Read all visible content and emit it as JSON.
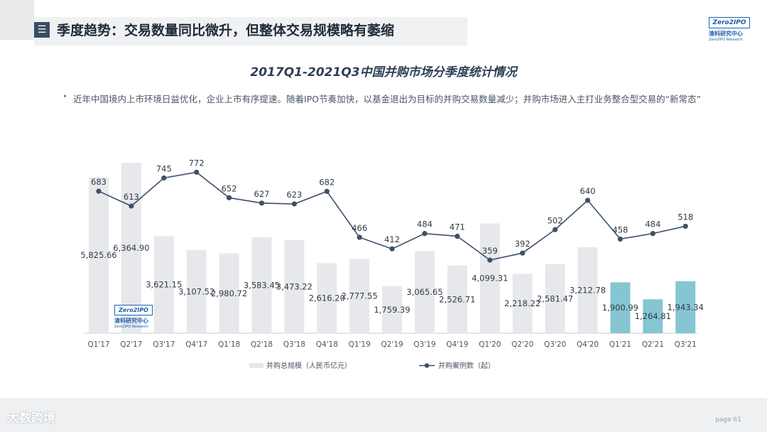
{
  "header": {
    "icon": "menu-icon",
    "icon_glyph": "☰",
    "title": "季度趋势：交易数量同比微升，但整体交易规模略有萎缩"
  },
  "logo": {
    "badge": "Zero2IPO",
    "cn": "清科研究中心",
    "en": "Zero2IPO Research"
  },
  "bullet": {
    "text": "近年中国境内上市环境日益优化，企业上市有序提速。随着IPO节奏加快，以基金退出为目标的并购交易数量减少；并购市场进入主打业务整合型交易的“新常态”"
  },
  "footer": {
    "watermark": "大数跨境",
    "page_label": "page 61"
  },
  "chart_data": {
    "type": "bar",
    "title": "2017Q1-2021Q3中国并购市场分季度统计情况",
    "categories": [
      "Q1'17",
      "Q2'17",
      "Q3'17",
      "Q4'17",
      "Q1'18",
      "Q2'18",
      "Q3'18",
      "Q4'18",
      "Q1'19",
      "Q2'19",
      "Q3'19",
      "Q4'19",
      "Q1'20",
      "Q2'20",
      "Q3'20",
      "Q4'20",
      "Q1'21",
      "Q2'21",
      "Q3'21"
    ],
    "series": [
      {
        "name": "并购总规模（人民币亿元）",
        "kind": "bar",
        "values": [
          5825.66,
          6364.9,
          3621.15,
          3107.52,
          2980.72,
          3583.45,
          3473.22,
          2616.2,
          2777.55,
          1759.39,
          3065.65,
          2526.71,
          4099.31,
          2218.22,
          2581.47,
          3212.78,
          1900.99,
          1264.81,
          1943.34
        ],
        "labels": [
          "5,825.66",
          "6,364.90",
          "3,621.15",
          "3,107.52",
          "2,980.72",
          "3,583.45",
          "3,473.22",
          "2,616.20",
          "2,777.55",
          "1,759.39",
          "3,065.65",
          "2,526.71",
          "4,099.31",
          "2,218.22",
          "2,581.47",
          "3,212.78",
          "1,900.99",
          "1,264.81",
          "1,943.34"
        ]
      },
      {
        "name": "并购案例数（起）",
        "kind": "line",
        "values": [
          683,
          613,
          745,
          772,
          652,
          627,
          623,
          682,
          466,
          412,
          484,
          471,
          359,
          392,
          502,
          640,
          458,
          484,
          518
        ]
      }
    ],
    "highlight_categories": [
      "Q1'21",
      "Q2'21",
      "Q3'21"
    ],
    "colors": {
      "bar": "#e6e8ec",
      "bar_highlight": "#86c5d2",
      "line": "#3d5068",
      "label": "#333a44",
      "axis": "#c8ccd2"
    },
    "legend_position": "bottom",
    "grid": false
  }
}
